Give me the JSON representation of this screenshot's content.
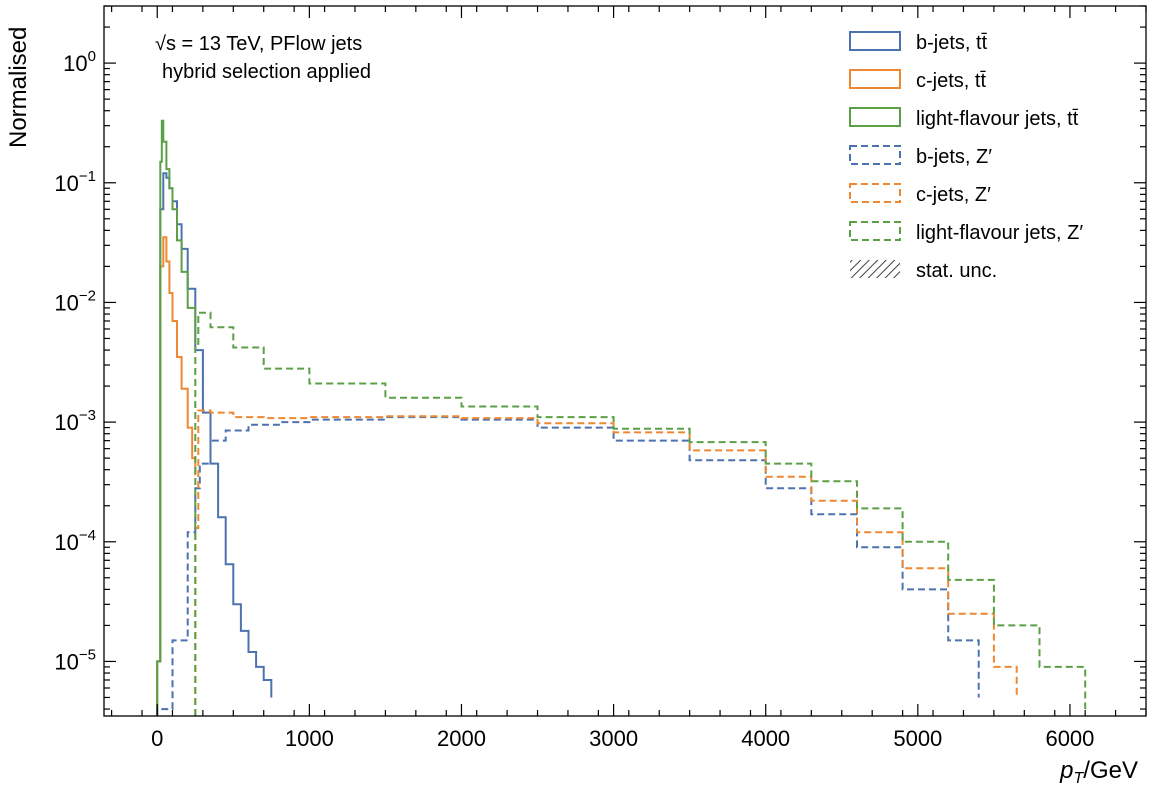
{
  "chart_data": {
    "type": "line",
    "ylabel": "Normalised",
    "xlabel_main": "p",
    "xlabel_sub": "T",
    "xlabel_unit": "/GeV",
    "annotation_line1_prefix": "√s = 13 TeV, PFlow jets",
    "annotation_line2": "hybrid selection applied",
    "x_ticks": [
      "0",
      "1000",
      "2000",
      "3000",
      "4000",
      "5000",
      "6000"
    ],
    "y_ticks": [
      {
        "base": "10",
        "exp": "0",
        "value": 1
      },
      {
        "base": "10",
        "exp": "−1",
        "value": 0.1
      },
      {
        "base": "10",
        "exp": "−2",
        "value": 0.01
      },
      {
        "base": "10",
        "exp": "−3",
        "value": 0.001
      },
      {
        "base": "10",
        "exp": "−4",
        "value": 0.0001
      },
      {
        "base": "10",
        "exp": "−5",
        "value": 1e-05
      }
    ],
    "xlim": [
      -350,
      6500
    ],
    "ylim": [
      3.5e-06,
      3.0
    ],
    "y_scale": "log",
    "grid": false,
    "legend_position": "top-right",
    "series": [
      {
        "name": "b-jets, tt̄",
        "color": "#4c72b0",
        "style": "solid",
        "x": [
          0,
          20,
          40,
          60,
          80,
          100,
          130,
          160,
          200,
          250,
          300,
          350,
          400,
          450,
          500,
          550,
          600,
          650,
          700,
          750
        ],
        "y": [
          1e-05,
          0.06,
          0.12,
          0.11,
          0.09,
          0.07,
          0.045,
          0.028,
          0.013,
          0.004,
          0.0012,
          0.00045,
          0.00016,
          6.5e-05,
          3e-05,
          1.8e-05,
          1.2e-05,
          9e-06,
          7e-06,
          5e-06
        ]
      },
      {
        "name": "c-jets, tt̄",
        "color": "#ee8833",
        "style": "solid",
        "x": [
          0,
          20,
          40,
          60,
          80,
          100,
          130,
          160,
          200,
          230,
          250
        ],
        "y": [
          1e-05,
          0.02,
          0.035,
          0.022,
          0.012,
          0.007,
          0.0035,
          0.0019,
          0.0009,
          0.0005,
          0.00036
        ]
      },
      {
        "name": "light-flavour jets, tt̄",
        "color": "#5ba046",
        "style": "solid",
        "x": [
          0,
          20,
          30,
          40,
          60,
          80,
          100,
          130,
          160,
          200,
          250
        ],
        "y": [
          1e-05,
          0.15,
          0.33,
          0.22,
          0.13,
          0.09,
          0.06,
          0.033,
          0.018,
          0.009,
          0.0045
        ]
      },
      {
        "name": "b-jets, Z′",
        "color": "#4c72b0",
        "style": "dashed",
        "x": [
          0,
          100,
          200,
          250,
          280,
          350,
          450,
          600,
          800,
          1000,
          1500,
          2000,
          2500,
          3000,
          3500,
          4000,
          4300,
          4600,
          4900,
          5200,
          5400
        ],
        "y": [
          4e-06,
          1.5e-05,
          0.00012,
          0.00028,
          0.00045,
          0.0007,
          0.00085,
          0.00095,
          0.001,
          0.00105,
          0.0011,
          0.00105,
          0.0009,
          0.0007,
          0.00048,
          0.00028,
          0.00017,
          9e-05,
          4e-05,
          1.5e-05,
          5e-06
        ]
      },
      {
        "name": "c-jets, Z′",
        "color": "#ee8833",
        "style": "dashed",
        "x": [
          250,
          270,
          350,
          500,
          700,
          1000,
          1500,
          2000,
          2500,
          3000,
          3500,
          4000,
          4300,
          4600,
          4900,
          5200,
          5500,
          5650
        ],
        "y": [
          0.00013,
          0.00125,
          0.0012,
          0.0011,
          0.00108,
          0.0011,
          0.00112,
          0.00108,
          0.00098,
          0.00082,
          0.00058,
          0.00035,
          0.00022,
          0.00012,
          6e-05,
          2.5e-05,
          9e-06,
          5e-06
        ]
      },
      {
        "name": "light-flavour jets, Z′",
        "color": "#5ba046",
        "style": "dashed",
        "x": [
          250,
          270,
          350,
          500,
          700,
          1000,
          1500,
          2000,
          2500,
          3000,
          3500,
          4000,
          4300,
          4600,
          4900,
          5200,
          5500,
          5800,
          6100
        ],
        "y": [
          0.0045,
          0.0082,
          0.0062,
          0.0042,
          0.0028,
          0.0021,
          0.0016,
          0.00135,
          0.0011,
          0.00088,
          0.00068,
          0.00045,
          0.00032,
          0.00019,
          0.0001,
          4.8e-05,
          2e-05,
          9e-06,
          4e-06
        ]
      }
    ],
    "legend": [
      {
        "label": "b-jets, tt̄",
        "color": "#4c72b0",
        "style": "solid"
      },
      {
        "label": "c-jets, tt̄",
        "color": "#ee8833",
        "style": "solid"
      },
      {
        "label": "light-flavour jets, tt̄",
        "color": "#5ba046",
        "style": "solid"
      },
      {
        "label": "b-jets, Z′",
        "color": "#4c72b0",
        "style": "dashed"
      },
      {
        "label": "c-jets, Z′",
        "color": "#ee8833",
        "style": "dashed"
      },
      {
        "label": "light-flavour jets, Z′",
        "color": "#5ba046",
        "style": "dashed"
      },
      {
        "label": "stat. unc.",
        "color": "#444444",
        "style": "hatch"
      }
    ]
  }
}
